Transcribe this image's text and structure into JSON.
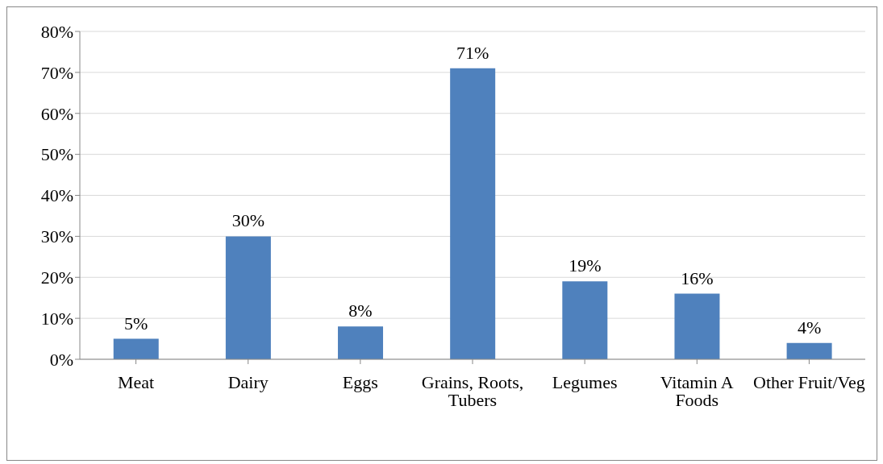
{
  "chart_data": {
    "type": "bar",
    "categories": [
      "Meat",
      "Dairy",
      "Eggs",
      "Grains, Roots, Tubers",
      "Legumes",
      "Vitamin A Foods",
      "Other Fruit/Veg"
    ],
    "values": [
      5,
      30,
      8,
      71,
      19,
      16,
      4
    ],
    "color": "#4f81bd",
    "ylim": [
      0,
      80
    ],
    "yticks": [
      {
        "value": 0,
        "label": "0%"
      },
      {
        "value": 10,
        "label": "10%"
      },
      {
        "value": 20,
        "label": "20%"
      },
      {
        "value": 30,
        "label": "30%"
      },
      {
        "value": 40,
        "label": "40%"
      },
      {
        "value": 50,
        "label": "50%"
      },
      {
        "value": 60,
        "label": "60%"
      },
      {
        "value": 70,
        "label": "70%"
      },
      {
        "value": 80,
        "label": "80%"
      }
    ],
    "value_labels": [
      "5%",
      "30%",
      "8%",
      "71%",
      "19%",
      "16%",
      "4%"
    ],
    "grid": "y"
  }
}
